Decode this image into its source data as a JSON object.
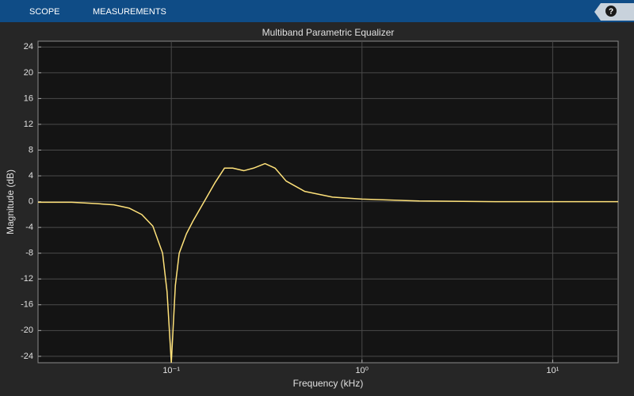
{
  "toolbar": {
    "tabs": [
      "SCOPE",
      "MEASUREMENTS"
    ],
    "help": "?"
  },
  "chart_data": {
    "type": "line",
    "title": "Multiband Parametric Equalizer",
    "x_label": "Frequency (kHz)",
    "y_label": "Magnitude (dB)",
    "x_scale": "log",
    "grid": true,
    "xlim": [
      0.02,
      22.05
    ],
    "ylim": [
      -25,
      24.9
    ],
    "xticks": [
      {
        "value": 0.1,
        "label": "10⁻¹"
      },
      {
        "value": 1,
        "label": "10⁰"
      },
      {
        "value": 10,
        "label": "10¹"
      }
    ],
    "yticks": [
      -24,
      -20,
      -16,
      -12,
      -8,
      -4,
      0,
      4,
      8,
      12,
      16,
      20,
      24
    ],
    "x": [
      0.02,
      0.03,
      0.04,
      0.05,
      0.06,
      0.07,
      0.08,
      0.09,
      0.095,
      0.1,
      0.105,
      0.11,
      0.12,
      0.13,
      0.15,
      0.17,
      0.19,
      0.21,
      0.24,
      0.27,
      0.31,
      0.35,
      0.4,
      0.5,
      0.7,
      1,
      2,
      5,
      10,
      22.05
    ],
    "series": [
      {
        "color": "#ffe27a",
        "values": [
          -0.1,
          -0.1,
          -0.3,
          -0.5,
          -1.0,
          -2.0,
          -3.8,
          -8,
          -14,
          -25,
          -13,
          -8,
          -5,
          -3,
          0.2,
          3,
          5.2,
          5.2,
          4.8,
          5.2,
          5.9,
          5.2,
          3.2,
          1.6,
          0.7,
          0.4,
          0.1,
          0,
          0,
          0
        ]
      }
    ]
  }
}
